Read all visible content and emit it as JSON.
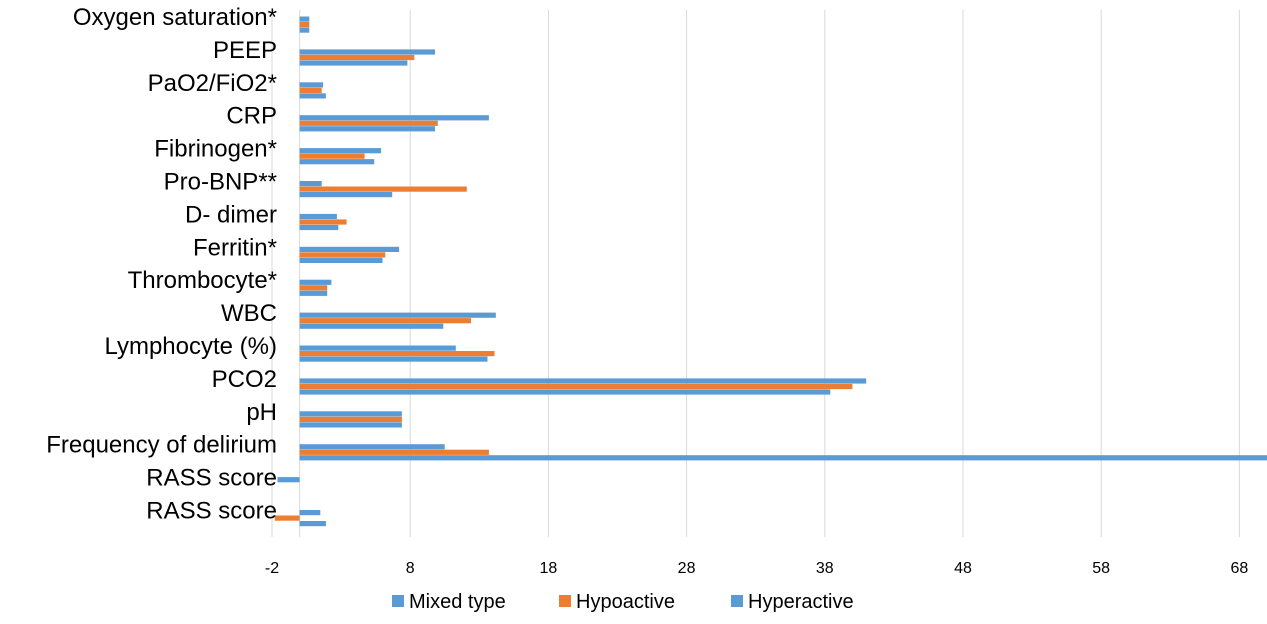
{
  "chart_data": {
    "type": "bar",
    "orientation": "horizontal",
    "categories": [
      "Oxygen saturation*",
      "PEEP",
      "PaO2/FiO2*",
      "CRP",
      "Fibrinogen*",
      "Pro-BNP**",
      "D- dimer",
      "Ferritin*",
      "Thrombocyte*",
      "WBC",
      "Lymphocyte (%)",
      "PCO2",
      "pH",
      "Frequency of delirium",
      "RASS score",
      "RASS score"
    ],
    "series": [
      {
        "name": "Mixed type",
        "color": "#5b9bd5",
        "values": [
          0.7,
          9.8,
          1.7,
          13.7,
          5.9,
          1.6,
          2.7,
          7.2,
          2.3,
          14.2,
          11.3,
          41.0,
          7.4,
          10.5,
          -1.6,
          1.5
        ]
      },
      {
        "name": "Hypoactive",
        "color": "#ed7d31",
        "values": [
          0.7,
          8.3,
          1.6,
          10.0,
          4.7,
          12.1,
          3.4,
          6.2,
          2.0,
          12.4,
          14.1,
          40.0,
          7.4,
          13.7,
          0.0,
          -1.8
        ]
      },
      {
        "name": "Hyperactive",
        "color": "#5b9bd5",
        "values": [
          0.7,
          7.8,
          1.9,
          9.8,
          5.4,
          6.7,
          2.8,
          6.0,
          2.0,
          10.4,
          13.6,
          38.4,
          7.4,
          70.0,
          0.0,
          1.9
        ]
      }
    ],
    "x_ticks": [
      "-2",
      "8",
      "18",
      "28",
      "38",
      "48",
      "58",
      "68"
    ],
    "xlim": [
      -2,
      70
    ],
    "grid": true,
    "legend_position": "bottom"
  }
}
